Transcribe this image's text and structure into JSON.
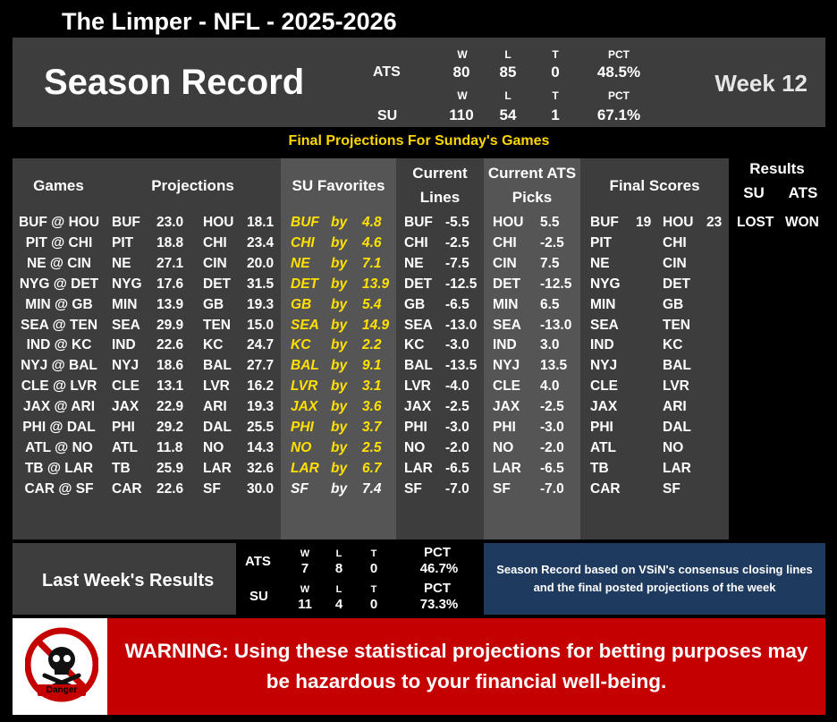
{
  "header": {
    "title": "The Limper - NFL - 2025-2026"
  },
  "season": {
    "title": "Season Record",
    "week": "Week 12",
    "ats": {
      "label": "ATS",
      "w_h": "W",
      "l_h": "L",
      "t_h": "T",
      "pct_h": "PCT",
      "w": "80",
      "l": "85",
      "t": "0",
      "pct": "48.5%"
    },
    "su": {
      "label": "SU",
      "w_h": "W",
      "l_h": "L",
      "t_h": "T",
      "pct_h": "PCT",
      "w": "110",
      "l": "54",
      "t": "1",
      "pct": "67.1%"
    }
  },
  "banner": "Final Projections For Sunday's Games",
  "columns": {
    "games": "Games",
    "projections": "Projections",
    "su_favorites": "SU Favorites",
    "current_lines_1": "Current",
    "current_lines_2": "Lines",
    "ats_picks_1": "Current ATS",
    "ats_picks_2": "Picks",
    "final_scores": "Final Scores",
    "results": "Results",
    "results_su": "SU",
    "results_ats": "ATS"
  },
  "games": [
    {
      "game": "BUF @ HOU",
      "pa": "BUF",
      "pa_s": "23.0",
      "ph": "HOU",
      "ph_s": "18.1",
      "fav": "BUF",
      "by": "by",
      "margin": "4.8",
      "fav_white": false,
      "line_team": "BUF",
      "line": "-5.5",
      "pick": "HOU",
      "pick_line": "5.5",
      "fa": "BUF",
      "fa_s": "19",
      "fh": "HOU",
      "fh_s": "23",
      "res_su": "LOST",
      "res_ats": "WON"
    },
    {
      "game": "PIT @ CHI",
      "pa": "PIT",
      "pa_s": "18.8",
      "ph": "CHI",
      "ph_s": "23.4",
      "fav": "CHI",
      "by": "by",
      "margin": "4.6",
      "fav_white": false,
      "line_team": "CHI",
      "line": "-2.5",
      "pick": "CHI",
      "pick_line": "-2.5",
      "fa": "PIT",
      "fa_s": "",
      "fh": "CHI",
      "fh_s": "",
      "res_su": "",
      "res_ats": ""
    },
    {
      "game": "NE @ CIN",
      "pa": "NE",
      "pa_s": "27.1",
      "ph": "CIN",
      "ph_s": "20.0",
      "fav": "NE",
      "by": "by",
      "margin": "7.1",
      "fav_white": false,
      "line_team": "NE",
      "line": "-7.5",
      "pick": "CIN",
      "pick_line": "7.5",
      "fa": "NE",
      "fa_s": "",
      "fh": "CIN",
      "fh_s": "",
      "res_su": "",
      "res_ats": ""
    },
    {
      "game": "NYG @ DET",
      "pa": "NYG",
      "pa_s": "17.6",
      "ph": "DET",
      "ph_s": "31.5",
      "fav": "DET",
      "by": "by",
      "margin": "13.9",
      "fav_white": false,
      "line_team": "DET",
      "line": "-12.5",
      "pick": "DET",
      "pick_line": "-12.5",
      "fa": "NYG",
      "fa_s": "",
      "fh": "DET",
      "fh_s": "",
      "res_su": "",
      "res_ats": ""
    },
    {
      "game": "MIN @ GB",
      "pa": "MIN",
      "pa_s": "13.9",
      "ph": "GB",
      "ph_s": "19.3",
      "fav": "GB",
      "by": "by",
      "margin": "5.4",
      "fav_white": false,
      "line_team": "GB",
      "line": "-6.5",
      "pick": "MIN",
      "pick_line": "6.5",
      "fa": "MIN",
      "fa_s": "",
      "fh": "GB",
      "fh_s": "",
      "res_su": "",
      "res_ats": ""
    },
    {
      "game": "SEA @ TEN",
      "pa": "SEA",
      "pa_s": "29.9",
      "ph": "TEN",
      "ph_s": "15.0",
      "fav": "SEA",
      "by": "by",
      "margin": "14.9",
      "fav_white": false,
      "line_team": "SEA",
      "line": "-13.0",
      "pick": "SEA",
      "pick_line": "-13.0",
      "fa": "SEA",
      "fa_s": "",
      "fh": "TEN",
      "fh_s": "",
      "res_su": "",
      "res_ats": ""
    },
    {
      "game": "IND @ KC",
      "pa": "IND",
      "pa_s": "22.6",
      "ph": "KC",
      "ph_s": "24.7",
      "fav": "KC",
      "by": "by",
      "margin": "2.2",
      "fav_white": false,
      "line_team": "KC",
      "line": "-3.0",
      "pick": "IND",
      "pick_line": "3.0",
      "fa": "IND",
      "fa_s": "",
      "fh": "KC",
      "fh_s": "",
      "res_su": "",
      "res_ats": ""
    },
    {
      "game": "NYJ @ BAL",
      "pa": "NYJ",
      "pa_s": "18.6",
      "ph": "BAL",
      "ph_s": "27.7",
      "fav": "BAL",
      "by": "by",
      "margin": "9.1",
      "fav_white": false,
      "line_team": "BAL",
      "line": "-13.5",
      "pick": "NYJ",
      "pick_line": "13.5",
      "fa": "NYJ",
      "fa_s": "",
      "fh": "BAL",
      "fh_s": "",
      "res_su": "",
      "res_ats": ""
    },
    {
      "game": "CLE @ LVR",
      "pa": "CLE",
      "pa_s": "13.1",
      "ph": "LVR",
      "ph_s": "16.2",
      "fav": "LVR",
      "by": "by",
      "margin": "3.1",
      "fav_white": false,
      "line_team": "LVR",
      "line": "-4.0",
      "pick": "CLE",
      "pick_line": "4.0",
      "fa": "CLE",
      "fa_s": "",
      "fh": "LVR",
      "fh_s": "",
      "res_su": "",
      "res_ats": ""
    },
    {
      "game": "JAX @ ARI",
      "pa": "JAX",
      "pa_s": "22.9",
      "ph": "ARI",
      "ph_s": "19.3",
      "fav": "JAX",
      "by": "by",
      "margin": "3.6",
      "fav_white": false,
      "line_team": "JAX",
      "line": "-2.5",
      "pick": "JAX",
      "pick_line": "-2.5",
      "fa": "JAX",
      "fa_s": "",
      "fh": "ARI",
      "fh_s": "",
      "res_su": "",
      "res_ats": ""
    },
    {
      "game": "PHI @ DAL",
      "pa": "PHI",
      "pa_s": "29.2",
      "ph": "DAL",
      "ph_s": "25.5",
      "fav": "PHI",
      "by": "by",
      "margin": "3.7",
      "fav_white": false,
      "line_team": "PHI",
      "line": "-3.0",
      "pick": "PHI",
      "pick_line": "-3.0",
      "fa": "PHI",
      "fa_s": "",
      "fh": "DAL",
      "fh_s": "",
      "res_su": "",
      "res_ats": ""
    },
    {
      "game": "ATL @ NO",
      "pa": "ATL",
      "pa_s": "11.8",
      "ph": "NO",
      "ph_s": "14.3",
      "fav": "NO",
      "by": "by",
      "margin": "2.5",
      "fav_white": false,
      "line_team": "NO",
      "line": "-2.0",
      "pick": "NO",
      "pick_line": "-2.0",
      "fa": "ATL",
      "fa_s": "",
      "fh": "NO",
      "fh_s": "",
      "res_su": "",
      "res_ats": ""
    },
    {
      "game": "TB @ LAR",
      "pa": "TB",
      "pa_s": "25.9",
      "ph": "LAR",
      "ph_s": "32.6",
      "fav": "LAR",
      "by": "by",
      "margin": "6.7",
      "fav_white": false,
      "line_team": "LAR",
      "line": "-6.5",
      "pick": "LAR",
      "pick_line": "-6.5",
      "fa": "TB",
      "fa_s": "",
      "fh": "LAR",
      "fh_s": "",
      "res_su": "",
      "res_ats": ""
    },
    {
      "game": "CAR @ SF",
      "pa": "CAR",
      "pa_s": "22.6",
      "ph": "SF",
      "ph_s": "30.0",
      "fav": "SF",
      "by": "by",
      "margin": "7.4",
      "fav_white": true,
      "line_team": "SF",
      "line": "-7.0",
      "pick": "SF",
      "pick_line": "-7.0",
      "fa": "CAR",
      "fa_s": "",
      "fh": "SF",
      "fh_s": "",
      "res_su": "",
      "res_ats": ""
    }
  ],
  "last_week": {
    "label": "Last Week's Results",
    "ats": {
      "label": "ATS",
      "w_h": "W",
      "l_h": "L",
      "t_h": "T",
      "pct_h": "PCT",
      "w": "7",
      "l": "8",
      "t": "0",
      "pct": "46.7%"
    },
    "su": {
      "label": "SU",
      "w_h": "W",
      "l_h": "L",
      "t_h": "T",
      "pct_h": "PCT",
      "w": "11",
      "l": "4",
      "t": "0",
      "pct": "73.3%"
    }
  },
  "note": "Season Record based on VSiN's consensus closing lines and the final posted projections of the week",
  "warning": {
    "logo_text": "Danger",
    "text": "WARNING: Using these statistical projections for betting purposes may be hazardous to your financial well-being."
  },
  "colors": {
    "panel_dark": "#3d3d3d",
    "panel_mid": "#555555",
    "favorite_yellow": "#ffe000",
    "banner_yellow": "#ffd700",
    "warning_red": "#c40000",
    "note_blue": "#1f3a5f"
  }
}
